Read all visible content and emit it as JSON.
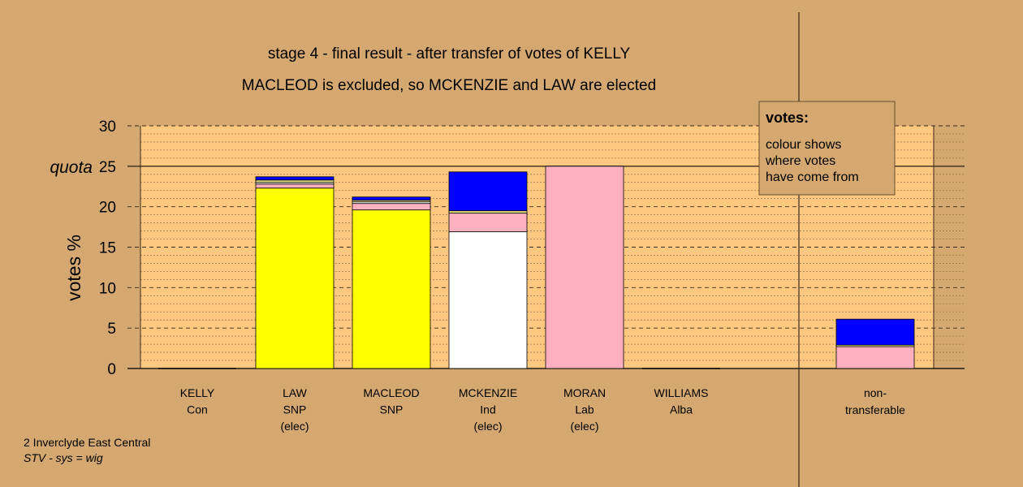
{
  "chart_data": {
    "type": "bar",
    "stacked": true,
    "title": "stage 4 - final result - after transfer of votes of KELLY",
    "subtitle": "MACLEOD is excluded, so MCKENZIE and LAW are elected",
    "ylabel": "votes %",
    "ylim": [
      0,
      30
    ],
    "yticks": [
      0,
      5,
      10,
      15,
      20,
      25,
      30
    ],
    "quota": 25,
    "quota_label": "quota",
    "grid": true,
    "colors": {
      "Ind": "#ffffff",
      "SNP": "#ffff00",
      "Lab": "#ffb0c0",
      "Con": "#0000ff",
      "Alba": "#e0e080",
      "nt": "#7a7a7a"
    },
    "categories": [
      {
        "name": "KELLY",
        "party": "Con",
        "note": "",
        "segments": []
      },
      {
        "name": "LAW",
        "party": "SNP",
        "note": "(elec)",
        "segments": [
          {
            "from": "SNP",
            "value": 22.3
          },
          {
            "from": "Lab",
            "value": 0.5
          },
          {
            "from": "Ind",
            "value": 0.2
          },
          {
            "from": "Alba",
            "value": 0.3
          },
          {
            "from": "Con",
            "value": 0.4
          }
        ]
      },
      {
        "name": "MACLEOD",
        "party": "SNP",
        "note": "",
        "segments": [
          {
            "from": "SNP",
            "value": 19.6
          },
          {
            "from": "Lab",
            "value": 0.8
          },
          {
            "from": "Ind",
            "value": 0.2
          },
          {
            "from": "Alba",
            "value": 0.2
          },
          {
            "from": "Con",
            "value": 0.4
          }
        ]
      },
      {
        "name": "MCKENZIE",
        "party": "Ind",
        "note": "(elec)",
        "segments": [
          {
            "from": "Ind",
            "value": 16.9
          },
          {
            "from": "Lab",
            "value": 2.3
          },
          {
            "from": "Alba",
            "value": 0.3
          },
          {
            "from": "Con",
            "value": 4.8
          }
        ]
      },
      {
        "name": "MORAN",
        "party": "Lab",
        "note": "(elec)",
        "segments": [
          {
            "from": "Lab",
            "value": 25.0
          }
        ]
      },
      {
        "name": "WILLIAMS",
        "party": "Alba",
        "note": "",
        "segments": []
      }
    ],
    "nontransferable": {
      "label_line1": "non-",
      "label_line2": "transferable",
      "segments": [
        {
          "from": "Lab",
          "value": 2.7
        },
        {
          "from": "Alba",
          "value": 0.2
        },
        {
          "from": "Con",
          "value": 3.2
        }
      ]
    },
    "legend": {
      "title": "votes:",
      "lines": [
        "colour shows",
        "where votes",
        "have come from"
      ]
    }
  },
  "footer": {
    "line1": "2 Inverclyde East Central",
    "line2": "STV - sys = wig"
  }
}
